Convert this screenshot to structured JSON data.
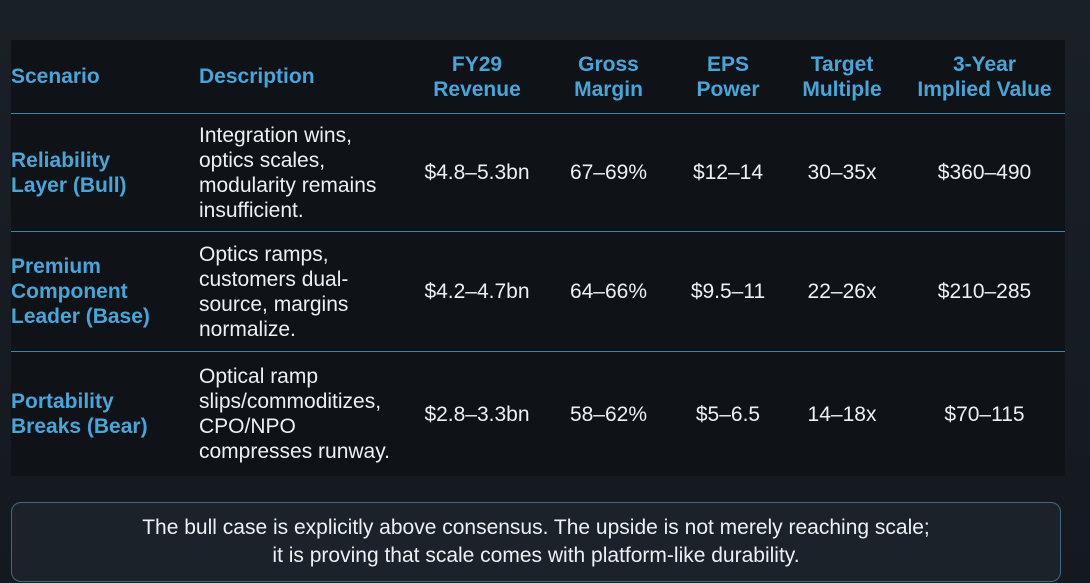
{
  "table": {
    "headers": {
      "scenario": "Scenario",
      "description": "Description",
      "revenue": [
        "FY29",
        "Revenue"
      ],
      "margin": [
        "Gross",
        "Margin"
      ],
      "eps": [
        "EPS",
        "Power"
      ],
      "multiple": [
        "Target",
        "Multiple"
      ],
      "value": [
        "3-Year",
        "Implied Value"
      ]
    },
    "rows": [
      {
        "scenario": [
          "Reliability",
          "Layer (Bull)"
        ],
        "description": [
          "Integration wins,",
          "optics scales,",
          "modularity remains",
          "insufficient."
        ],
        "revenue": "$4.8–5.3bn",
        "margin": "67–69%",
        "eps": "$12–14",
        "multiple": "30–35x",
        "value": "$360–490"
      },
      {
        "scenario": [
          "Premium",
          "Component",
          "Leader (Base)"
        ],
        "description": [
          "Optics ramps,",
          "customers dual-",
          "source, margins",
          "normalize."
        ],
        "revenue": "$4.2–4.7bn",
        "margin": "64–66%",
        "eps": "$9.5–11",
        "multiple": "22–26x",
        "value": "$210–285"
      },
      {
        "scenario": [
          "Portability",
          "Breaks (Bear)"
        ],
        "description": [
          "Optical ramp",
          "slips/commoditizes,",
          "CPO/NPO",
          "compresses runway."
        ],
        "revenue": "$2.8–3.3bn",
        "margin": "58–62%",
        "eps": "$5–6.5",
        "multiple": "14–18x",
        "value": "$70–115"
      }
    ]
  },
  "note": {
    "line1": "The bull case is explicitly above consensus. The upside is not merely reaching scale;",
    "line2": "it is proving that scale comes with platform-like durability."
  },
  "colors": {
    "background": "#14191f",
    "table_background": "#0f1318",
    "accent": "#47a6d8",
    "rule": "#3e86a7",
    "text": "#ecf0f3"
  }
}
